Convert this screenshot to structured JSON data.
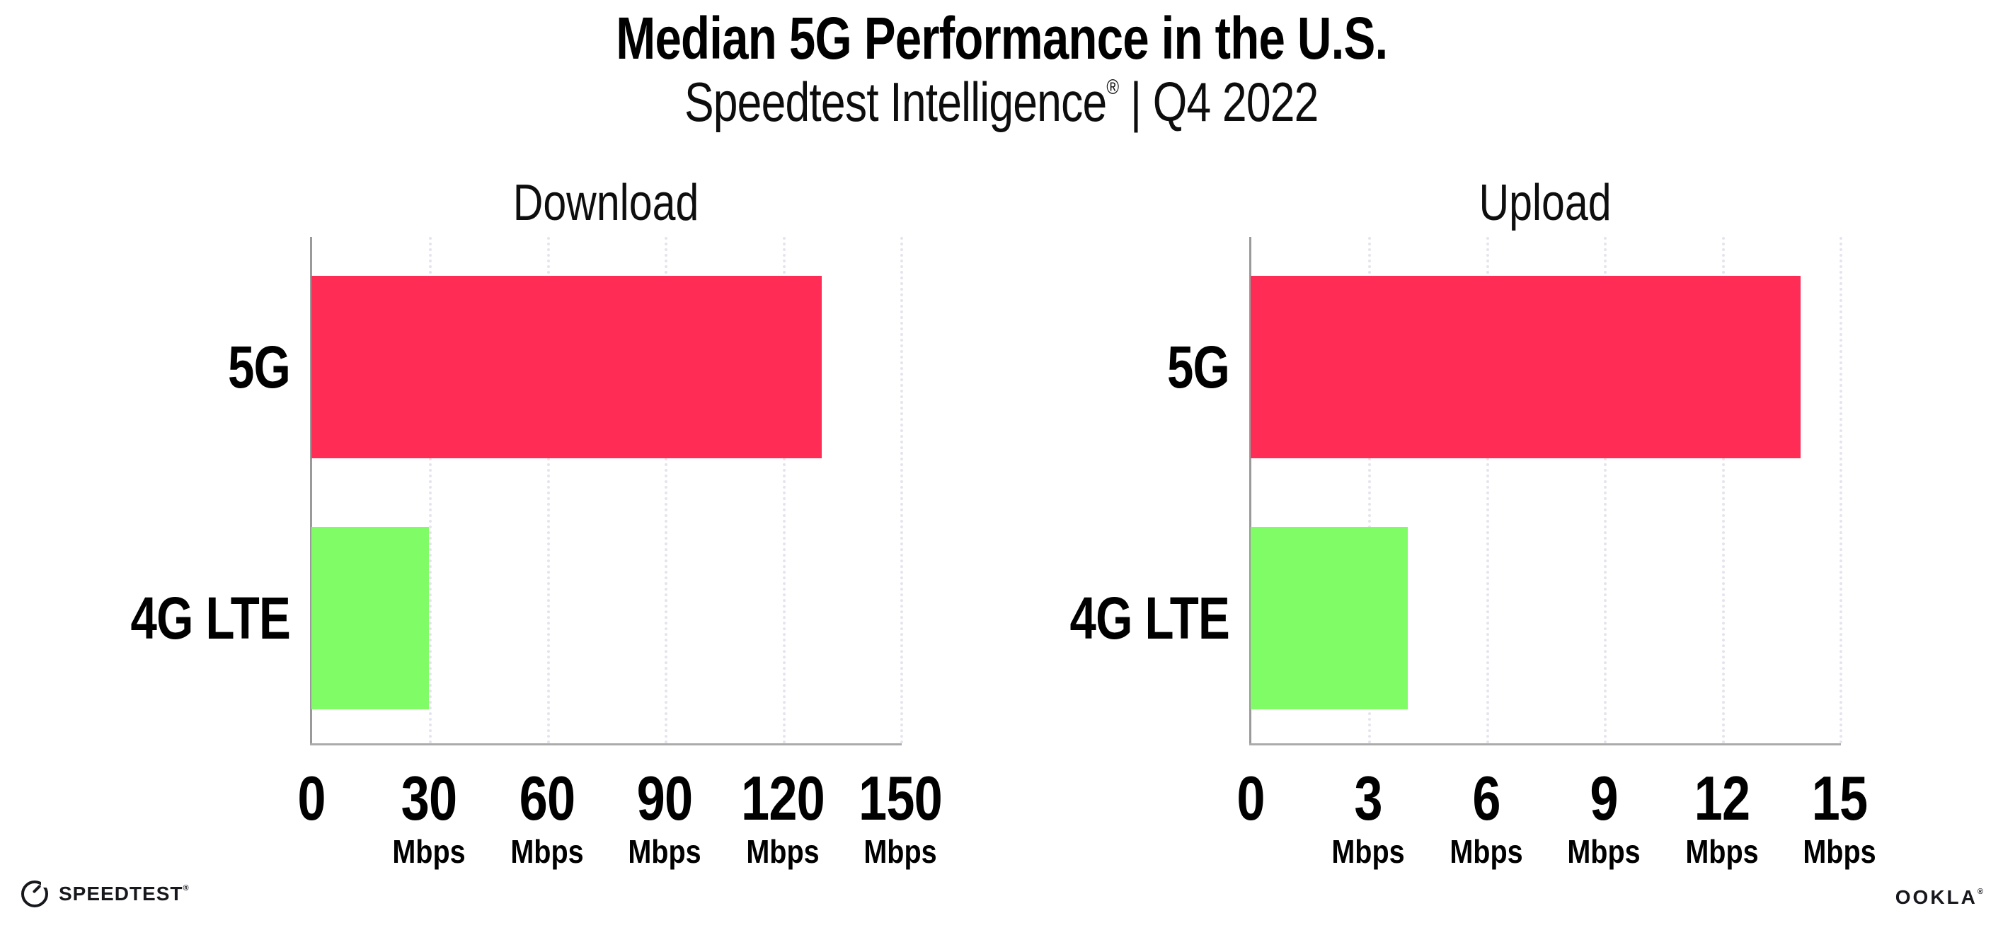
{
  "header": {
    "title": "Median 5G Performance in the U.S.",
    "subtitle_brand": "Speedtest Intelligence",
    "subtitle_reg": "®",
    "subtitle_rest": " | Q4 2022"
  },
  "footer": {
    "speedtest_label": "SPEEDTEST",
    "speedtest_mark": "®",
    "speedtest_icon": "gauge-icon",
    "ookla_label": "OOKLA",
    "ookla_mark": "®"
  },
  "colors": {
    "bar_5g": "#FF2D55",
    "bar_4g_lte": "#80FC66",
    "gridline": "#E4E4EE",
    "axis": "#ABABAB"
  },
  "chart_data": [
    {
      "type": "bar",
      "orientation": "horizontal",
      "title": "Download",
      "categories": [
        "5G",
        "4G LTE"
      ],
      "values": [
        130,
        30
      ],
      "unit": "Mbps",
      "xlim": [
        0,
        150
      ],
      "xticks": [
        0,
        30,
        60,
        90,
        120,
        150
      ],
      "bar_colors": [
        "#FF2D55",
        "#80FC66"
      ],
      "grid": "dotted-vertical",
      "legend": "none"
    },
    {
      "type": "bar",
      "orientation": "horizontal",
      "title": "Upload",
      "categories": [
        "5G",
        "4G LTE"
      ],
      "values": [
        14,
        4
      ],
      "unit": "Mbps",
      "xlim": [
        0,
        15
      ],
      "xticks": [
        0,
        3,
        6,
        9,
        12,
        15
      ],
      "bar_colors": [
        "#FF2D55",
        "#80FC66"
      ],
      "grid": "dotted-vertical",
      "legend": "none"
    }
  ]
}
